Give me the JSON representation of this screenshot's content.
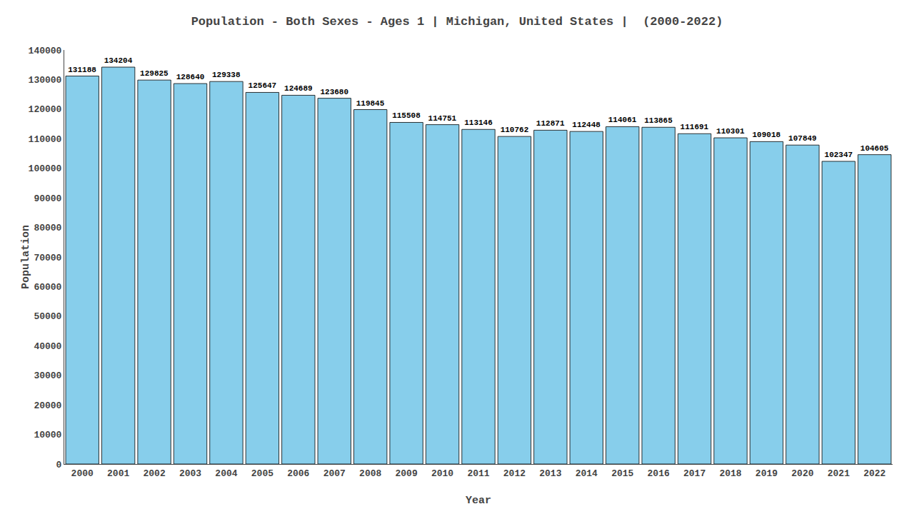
{
  "chart_data": {
    "type": "bar",
    "title": "Population - Both Sexes - Ages 1 | Michigan, United States |  (2000-2022)",
    "xlabel": "Year",
    "ylabel": "Population",
    "categories": [
      "2000",
      "2001",
      "2002",
      "2003",
      "2004",
      "2005",
      "2006",
      "2007",
      "2008",
      "2009",
      "2010",
      "2011",
      "2012",
      "2013",
      "2014",
      "2015",
      "2016",
      "2017",
      "2018",
      "2019",
      "2020",
      "2021",
      "2022"
    ],
    "values": [
      131188,
      134204,
      129825,
      128640,
      129338,
      125647,
      124689,
      123680,
      119845,
      115508,
      114751,
      113146,
      110762,
      112871,
      112448,
      114061,
      113865,
      111691,
      110301,
      109018,
      107849,
      102347,
      104605
    ],
    "color": "#87ceeb",
    "ylim": [
      0,
      140000
    ],
    "yticks": [
      0,
      10000,
      20000,
      30000,
      40000,
      50000,
      60000,
      70000,
      80000,
      90000,
      100000,
      110000,
      120000,
      130000,
      140000
    ],
    "grid": false,
    "data_labels": true
  }
}
